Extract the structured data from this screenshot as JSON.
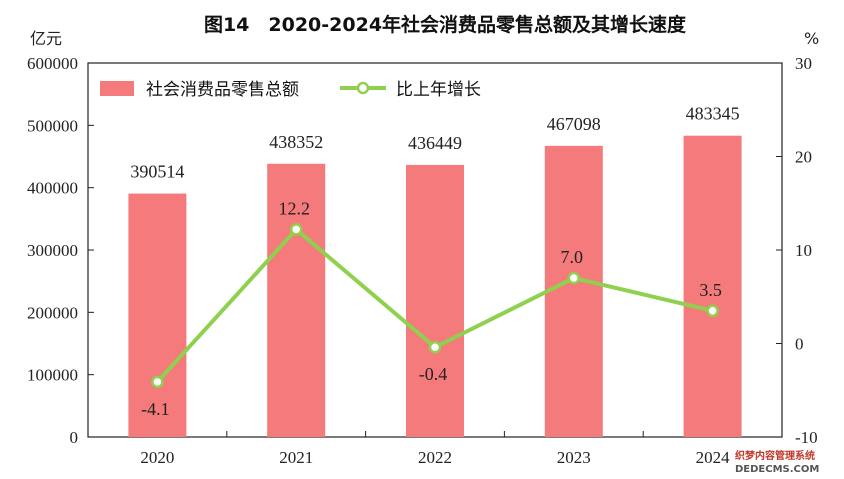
{
  "chart_data": {
    "type": "bar",
    "title": "图14　2020-2024年社会消费品零售总额及其增长速度",
    "left_unit": "亿元",
    "right_unit": "%",
    "categories": [
      "2020",
      "2021",
      "2022",
      "2023",
      "2024"
    ],
    "series": [
      {
        "name": "社会消费品零售总额",
        "type": "bar",
        "axis": "left",
        "values": [
          390514,
          438352,
          436449,
          467098,
          483345
        ],
        "labels": [
          "390514",
          "438352",
          "436449",
          "467098",
          "483345"
        ]
      },
      {
        "name": "比上年增长",
        "type": "line",
        "axis": "right",
        "values": [
          -4.1,
          12.2,
          -0.4,
          7.0,
          3.5
        ],
        "labels": [
          "-4.1",
          "12.2",
          "-0.4",
          "7.0",
          "3.5"
        ]
      }
    ],
    "left_axis": {
      "min": 0,
      "max": 600000,
      "step": 100000,
      "ticks": [
        "0",
        "100000",
        "200000",
        "300000",
        "400000",
        "500000",
        "600000"
      ]
    },
    "right_axis": {
      "min": -10,
      "max": 30,
      "step": 10,
      "ticks": [
        "-10",
        "0",
        "10",
        "20",
        "30"
      ]
    },
    "grid": false,
    "legend": "top-left",
    "colors": {
      "bar": "#f47a7b",
      "line": "#8fd14f",
      "marker_fill": "#ffffff",
      "axis": "#222222"
    }
  },
  "watermark": {
    "line1": "织梦内容管理系统",
    "line2": "DEDECMS.COM"
  }
}
